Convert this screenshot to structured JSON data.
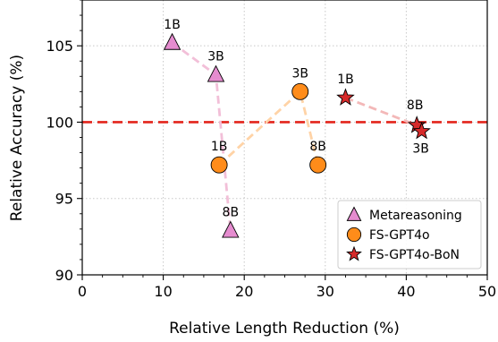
{
  "chart_data": {
    "type": "scatter",
    "xlabel": "Relative Length Reduction (%)",
    "ylabel": "Relative Accuracy (%)",
    "xlim": [
      0,
      50
    ],
    "ylim": [
      90,
      108
    ],
    "x_ticks": [
      "0",
      "10",
      "20",
      "30",
      "40",
      "50"
    ],
    "y_ticks": [
      "90",
      "95",
      "100",
      "105"
    ],
    "x_tick_values": [
      0,
      10,
      20,
      30,
      40,
      50
    ],
    "y_tick_values": [
      90,
      95,
      100,
      105
    ],
    "grid": true,
    "legend_position": "bottom-right",
    "reference_line": {
      "y": 100,
      "color": "#e3241b",
      "style": "dashed"
    },
    "series": [
      {
        "name": "Metareasoning",
        "marker": "triangle",
        "color": "#e58ccf",
        "line_color": "#f2bfd8",
        "points": [
          {
            "label": "1B",
            "x": 11.1,
            "y": 105.2
          },
          {
            "label": "3B",
            "x": 16.5,
            "y": 103.1
          },
          {
            "label": "8B",
            "x": 18.3,
            "y": 92.9
          }
        ]
      },
      {
        "name": "FS-GPT4o",
        "marker": "circle",
        "color": "#ff8c1a",
        "line_color": "#ffd3a6",
        "points": [
          {
            "label": "1B",
            "x": 16.9,
            "y": 97.2
          },
          {
            "label": "3B",
            "x": 26.9,
            "y": 102.0
          },
          {
            "label": "8B",
            "x": 29.1,
            "y": 97.2
          }
        ]
      },
      {
        "name": "FS-GPT4o-BoN",
        "marker": "star",
        "color": "#d62a2a",
        "line_color": "#f3b8b8",
        "points": [
          {
            "label": "1B",
            "x": 32.5,
            "y": 101.6
          },
          {
            "label": "8B",
            "x": 41.3,
            "y": 99.8
          },
          {
            "label": "3B",
            "x": 41.9,
            "y": 99.4
          }
        ]
      }
    ]
  }
}
